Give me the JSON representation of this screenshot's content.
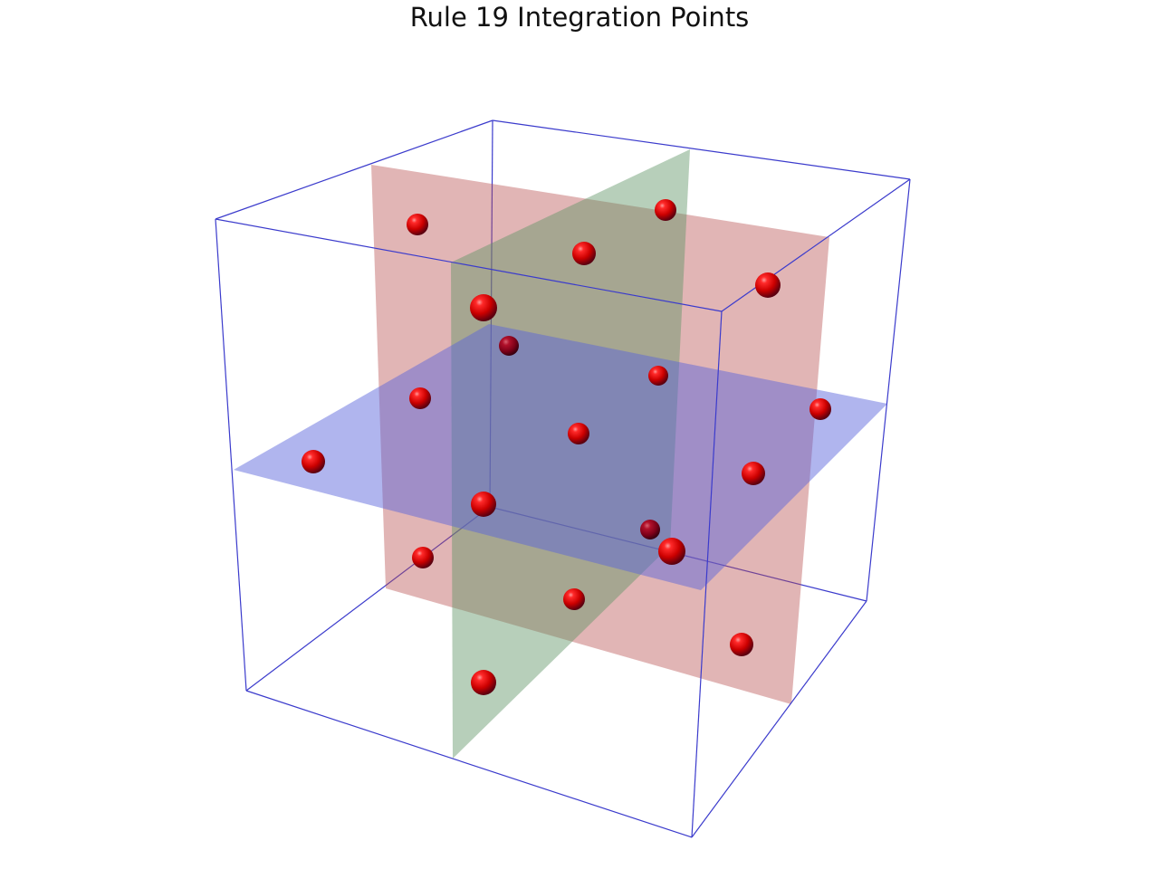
{
  "title": "Rule 19 Integration Points",
  "colors": {
    "box_edges": "#3333cc",
    "plane_xy": "#5a65dc",
    "plane_xz": "#b84e4e",
    "plane_yz": "#5f9466",
    "points": "#e00000",
    "background": "#ffffff"
  },
  "planes": [
    {
      "name": "horizontal-plane",
      "orientation": "horizontal",
      "color_key": "plane_xy"
    },
    {
      "name": "frontal-plane",
      "orientation": "vertical",
      "color_key": "plane_xz"
    },
    {
      "name": "sagittal-plane",
      "orientation": "vertical",
      "color_key": "plane_yz"
    }
  ],
  "point_count": 19
}
